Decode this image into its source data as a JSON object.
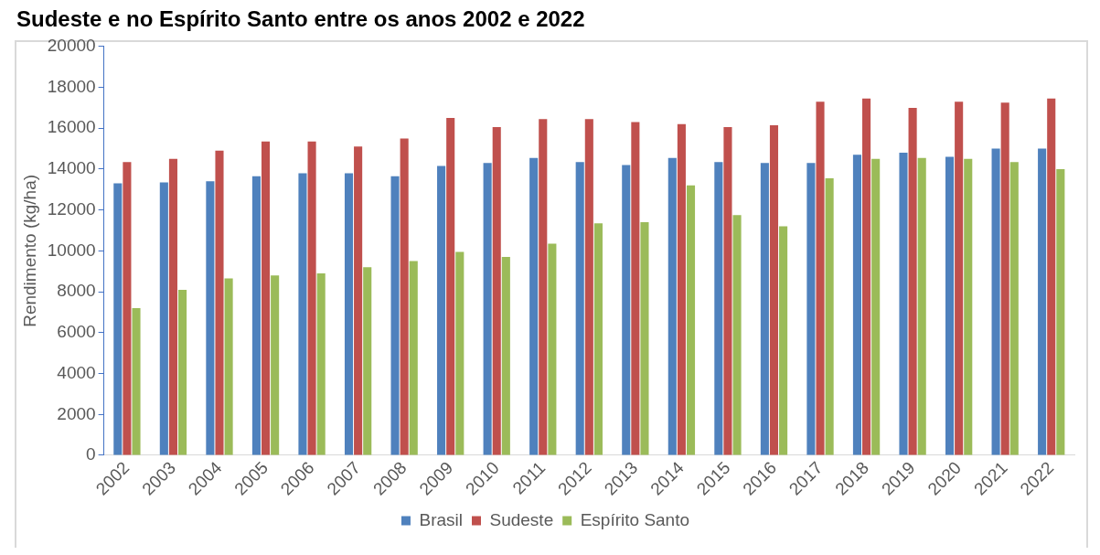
{
  "chart_data": {
    "type": "bar",
    "title": "Sudeste e no Espírito Santo entre os anos 2002 e 2022",
    "ylabel": "Rendimento (kg/ha)",
    "categories": [
      "2002",
      "2003",
      "2004",
      "2005",
      "2006",
      "2007",
      "2008",
      "2009",
      "2010",
      "2011",
      "2012",
      "2013",
      "2014",
      "2015",
      "2016",
      "2017",
      "2018",
      "2019",
      "2020",
      "2021",
      "2022"
    ],
    "series": [
      {
        "name": "Brasil",
        "color": "#4f81bd",
        "values": [
          13300,
          13350,
          13400,
          13650,
          13800,
          13800,
          13650,
          14150,
          14300,
          14550,
          14350,
          14200,
          14550,
          14350,
          14300,
          14300,
          14700,
          14800,
          14600,
          15000,
          15000
        ]
      },
      {
        "name": "Sudeste",
        "color": "#c0504d",
        "values": [
          14350,
          14500,
          14900,
          15350,
          15350,
          15100,
          15500,
          16500,
          16050,
          16450,
          16450,
          16300,
          16200,
          16050,
          16150,
          17300,
          17450,
          17000,
          17300,
          17250,
          17450
        ]
      },
      {
        "name": "Espírito Santo",
        "color": "#9bbb59",
        "values": [
          7200,
          8100,
          8650,
          8800,
          8900,
          9200,
          9500,
          9950,
          9700,
          10350,
          11350,
          11400,
          13200,
          11750,
          11200,
          13550,
          14500,
          14550,
          14500,
          14350,
          14000
        ]
      }
    ],
    "ylim": [
      0,
      20000
    ],
    "yticks": [
      0,
      2000,
      4000,
      6000,
      8000,
      10000,
      12000,
      14000,
      16000,
      18000,
      20000
    ],
    "grid": false,
    "legend": "bottom"
  }
}
